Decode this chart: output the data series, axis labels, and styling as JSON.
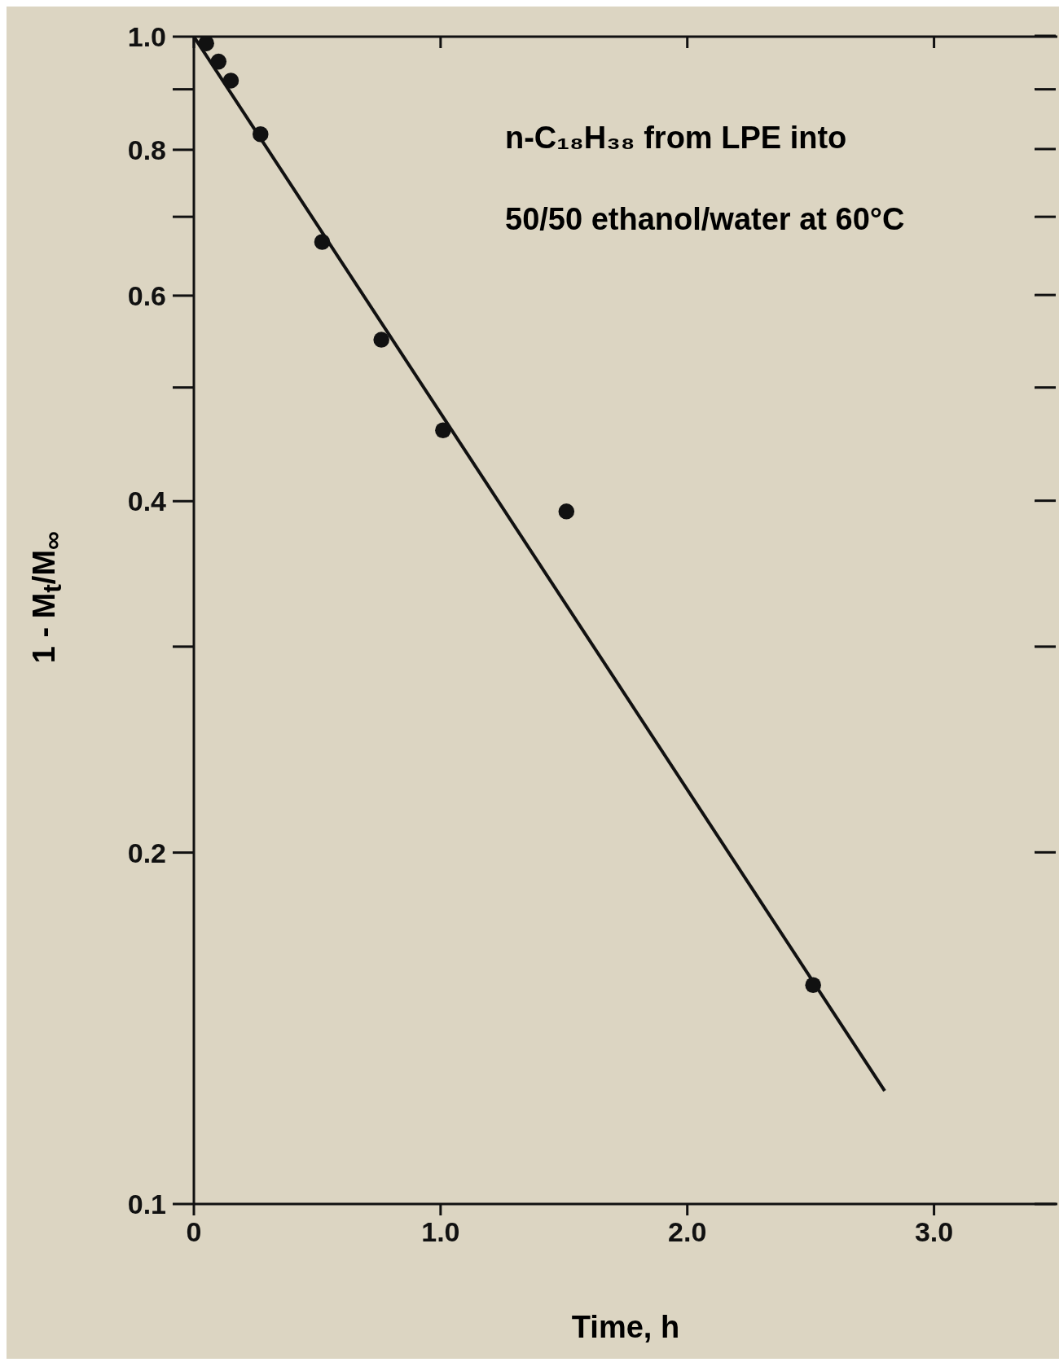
{
  "chart_data": {
    "type": "scatter",
    "xlabel": "Time, h",
    "ylabel": "1 - M$_{t}$/M$_{∞}$",
    "annotations": [
      "n-C₁₈H₃₈ from LPE into",
      "50/50 ethanol/water at 60°C"
    ],
    "series": [
      {
        "x": [
          0.05,
          0.1,
          0.15,
          0.27,
          0.52,
          0.76,
          1.01,
          1.51,
          2.51
        ],
        "values": [
          0.987,
          0.952,
          0.917,
          0.825,
          0.667,
          0.55,
          0.46,
          0.392,
          0.154
        ],
        "color": "#111111",
        "marker": "circle"
      },
      {
        "type": "line",
        "x": [
          0,
          2.8
        ],
        "values": [
          1.0,
          0.125
        ],
        "color": "#111111",
        "marker": "none",
        "line_style": "solid"
      }
    ],
    "xlim": [
      0,
      3.5
    ],
    "ylim": [
      0.1,
      1
    ],
    "log": "y",
    "grid": false,
    "legend": false,
    "xticks": [
      0,
      {
        "value": 1,
        "label": "1.0"
      },
      {
        "value": 2,
        "label": "2.0"
      },
      {
        "value": 3,
        "label": "3.0"
      }
    ],
    "yticks": [
      0.1,
      0.2,
      0.4,
      0.6,
      0.8,
      {
        "value": 1,
        "label": "1.0"
      }
    ]
  }
}
